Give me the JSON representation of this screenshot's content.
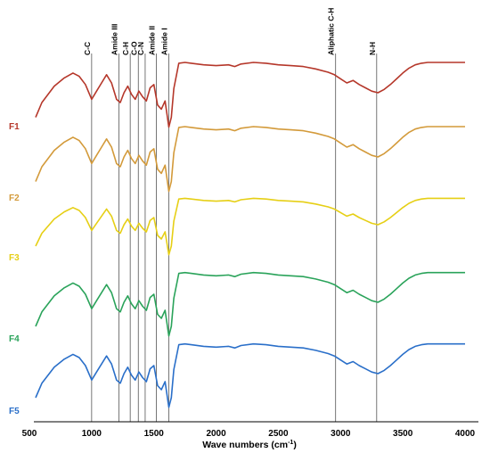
{
  "chart_data": {
    "type": "line",
    "title": "",
    "xlabel": "Wave numbers (cm",
    "xlabel_sup": "-1",
    "xlabel_close": ")",
    "ylabel": "",
    "xlim": [
      500,
      4000
    ],
    "xticks": [
      500,
      1000,
      1500,
      2000,
      2500,
      3000,
      3500,
      4000
    ],
    "grid": false,
    "vertical_markers": [
      {
        "label": "C-C",
        "x": 1000
      },
      {
        "label": "Amide III",
        "x": 1220
      },
      {
        "label": "C-H",
        "x": 1310
      },
      {
        "label": "C-O",
        "x": 1375
      },
      {
        "label": "C-N",
        "x": 1430
      },
      {
        "label": "Amide II",
        "x": 1520
      },
      {
        "label": "Amide I",
        "x": 1620
      },
      {
        "label": "Aliphatic C-H",
        "x": 2960
      },
      {
        "label": "N-H",
        "x": 3290
      }
    ],
    "series": [
      {
        "name": "F1",
        "color": "#b5372a",
        "offset": 0,
        "x": [
          550,
          600,
          700,
          780,
          850,
          900,
          950,
          1000,
          1040,
          1080,
          1120,
          1160,
          1200,
          1230,
          1260,
          1290,
          1320,
          1350,
          1380,
          1410,
          1440,
          1470,
          1500,
          1530,
          1560,
          1590,
          1620,
          1640,
          1660,
          1700,
          1750,
          1800,
          1900,
          2000,
          2100,
          2150,
          2200,
          2300,
          2400,
          2500,
          2600,
          2700,
          2800,
          2900,
          2950,
          3000,
          3050,
          3100,
          3150,
          3200,
          3250,
          3300,
          3350,
          3400,
          3450,
          3500,
          3550,
          3600,
          3650,
          3700,
          3800,
          3900,
          4000
        ],
        "y": [
          0.2,
          0.38,
          0.58,
          0.68,
          0.74,
          0.7,
          0.6,
          0.42,
          0.52,
          0.62,
          0.72,
          0.62,
          0.42,
          0.38,
          0.5,
          0.58,
          0.48,
          0.42,
          0.52,
          0.45,
          0.4,
          0.56,
          0.6,
          0.35,
          0.3,
          0.4,
          0.08,
          0.2,
          0.55,
          0.86,
          0.87,
          0.86,
          0.84,
          0.83,
          0.84,
          0.82,
          0.85,
          0.87,
          0.86,
          0.84,
          0.83,
          0.82,
          0.79,
          0.75,
          0.72,
          0.67,
          0.62,
          0.65,
          0.6,
          0.56,
          0.52,
          0.5,
          0.54,
          0.6,
          0.67,
          0.74,
          0.8,
          0.84,
          0.86,
          0.87,
          0.87,
          0.87,
          0.87
        ]
      },
      {
        "name": "F2",
        "color": "#d39a3a",
        "offset": 0,
        "x": [
          550,
          600,
          700,
          780,
          850,
          900,
          950,
          1000,
          1040,
          1080,
          1120,
          1160,
          1200,
          1230,
          1260,
          1290,
          1320,
          1350,
          1380,
          1410,
          1440,
          1470,
          1500,
          1530,
          1560,
          1590,
          1620,
          1640,
          1660,
          1700,
          1750,
          1800,
          1900,
          2000,
          2100,
          2150,
          2200,
          2300,
          2400,
          2500,
          2600,
          2700,
          2800,
          2900,
          2950,
          3000,
          3050,
          3100,
          3150,
          3200,
          3250,
          3300,
          3350,
          3400,
          3450,
          3500,
          3550,
          3600,
          3650,
          3700,
          3800,
          3900,
          4000
        ],
        "y": [
          0.2,
          0.38,
          0.58,
          0.68,
          0.74,
          0.7,
          0.6,
          0.42,
          0.52,
          0.62,
          0.72,
          0.62,
          0.42,
          0.38,
          0.5,
          0.58,
          0.48,
          0.42,
          0.52,
          0.45,
          0.4,
          0.56,
          0.6,
          0.35,
          0.3,
          0.4,
          0.08,
          0.2,
          0.55,
          0.86,
          0.87,
          0.86,
          0.84,
          0.83,
          0.84,
          0.82,
          0.85,
          0.87,
          0.86,
          0.84,
          0.83,
          0.82,
          0.79,
          0.75,
          0.72,
          0.67,
          0.62,
          0.65,
          0.6,
          0.56,
          0.52,
          0.5,
          0.54,
          0.6,
          0.67,
          0.74,
          0.8,
          0.84,
          0.86,
          0.87,
          0.87,
          0.87,
          0.87
        ]
      },
      {
        "name": "F3",
        "color": "#e6cf15",
        "offset": 0,
        "x": [
          550,
          600,
          700,
          780,
          850,
          900,
          950,
          1000,
          1040,
          1080,
          1120,
          1160,
          1200,
          1230,
          1260,
          1290,
          1320,
          1350,
          1380,
          1410,
          1440,
          1470,
          1500,
          1530,
          1560,
          1590,
          1620,
          1640,
          1660,
          1700,
          1750,
          1800,
          1900,
          2000,
          2100,
          2150,
          2200,
          2300,
          2400,
          2500,
          2600,
          2700,
          2800,
          2900,
          2950,
          3000,
          3050,
          3100,
          3150,
          3200,
          3250,
          3300,
          3350,
          3400,
          3450,
          3500,
          3550,
          3600,
          3650,
          3700,
          3800,
          3900,
          4000
        ],
        "y": [
          0.2,
          0.38,
          0.58,
          0.68,
          0.74,
          0.7,
          0.6,
          0.42,
          0.52,
          0.62,
          0.72,
          0.62,
          0.42,
          0.38,
          0.5,
          0.58,
          0.48,
          0.42,
          0.52,
          0.45,
          0.4,
          0.56,
          0.6,
          0.35,
          0.3,
          0.4,
          0.08,
          0.2,
          0.55,
          0.86,
          0.87,
          0.86,
          0.84,
          0.83,
          0.84,
          0.82,
          0.85,
          0.87,
          0.86,
          0.84,
          0.83,
          0.82,
          0.79,
          0.75,
          0.72,
          0.67,
          0.62,
          0.65,
          0.6,
          0.56,
          0.52,
          0.5,
          0.54,
          0.6,
          0.67,
          0.74,
          0.8,
          0.84,
          0.86,
          0.87,
          0.87,
          0.87,
          0.87
        ]
      },
      {
        "name": "F4",
        "color": "#2aa35a",
        "offset": 0,
        "x": [
          550,
          600,
          700,
          780,
          850,
          900,
          950,
          1000,
          1040,
          1080,
          1120,
          1160,
          1200,
          1230,
          1260,
          1290,
          1320,
          1350,
          1380,
          1410,
          1440,
          1470,
          1500,
          1530,
          1560,
          1590,
          1620,
          1640,
          1660,
          1700,
          1750,
          1800,
          1900,
          2000,
          2100,
          2150,
          2200,
          2300,
          2400,
          2500,
          2600,
          2700,
          2800,
          2900,
          2950,
          3000,
          3050,
          3100,
          3150,
          3200,
          3250,
          3300,
          3350,
          3400,
          3450,
          3500,
          3550,
          3600,
          3650,
          3700,
          3800,
          3900,
          4000
        ],
        "y": [
          0.2,
          0.38,
          0.58,
          0.68,
          0.74,
          0.7,
          0.6,
          0.42,
          0.52,
          0.62,
          0.72,
          0.62,
          0.42,
          0.38,
          0.5,
          0.58,
          0.48,
          0.42,
          0.52,
          0.45,
          0.4,
          0.56,
          0.6,
          0.35,
          0.3,
          0.4,
          0.08,
          0.2,
          0.55,
          0.86,
          0.87,
          0.86,
          0.84,
          0.83,
          0.84,
          0.82,
          0.85,
          0.87,
          0.86,
          0.84,
          0.83,
          0.82,
          0.79,
          0.75,
          0.72,
          0.67,
          0.62,
          0.65,
          0.6,
          0.56,
          0.52,
          0.5,
          0.54,
          0.6,
          0.67,
          0.74,
          0.8,
          0.84,
          0.86,
          0.87,
          0.87,
          0.87,
          0.87
        ]
      },
      {
        "name": "F5",
        "color": "#2a6fc9",
        "offset": 0,
        "x": [
          550,
          600,
          700,
          780,
          850,
          900,
          950,
          1000,
          1040,
          1080,
          1120,
          1160,
          1200,
          1230,
          1260,
          1290,
          1320,
          1350,
          1380,
          1410,
          1440,
          1470,
          1500,
          1530,
          1560,
          1590,
          1620,
          1640,
          1660,
          1700,
          1750,
          1800,
          1900,
          2000,
          2100,
          2150,
          2200,
          2300,
          2400,
          2500,
          2600,
          2700,
          2800,
          2900,
          2950,
          3000,
          3050,
          3100,
          3150,
          3200,
          3250,
          3300,
          3350,
          3400,
          3450,
          3500,
          3550,
          3600,
          3650,
          3700,
          3800,
          3900,
          4000
        ],
        "y": [
          0.2,
          0.38,
          0.58,
          0.68,
          0.74,
          0.7,
          0.6,
          0.42,
          0.52,
          0.62,
          0.72,
          0.62,
          0.42,
          0.38,
          0.5,
          0.58,
          0.48,
          0.42,
          0.52,
          0.45,
          0.4,
          0.56,
          0.6,
          0.35,
          0.3,
          0.4,
          0.08,
          0.2,
          0.55,
          0.86,
          0.87,
          0.86,
          0.84,
          0.83,
          0.84,
          0.82,
          0.85,
          0.87,
          0.86,
          0.84,
          0.83,
          0.82,
          0.79,
          0.75,
          0.72,
          0.67,
          0.62,
          0.65,
          0.6,
          0.56,
          0.52,
          0.5,
          0.54,
          0.6,
          0.67,
          0.74,
          0.8,
          0.84,
          0.86,
          0.87,
          0.87,
          0.87,
          0.87
        ]
      }
    ]
  }
}
